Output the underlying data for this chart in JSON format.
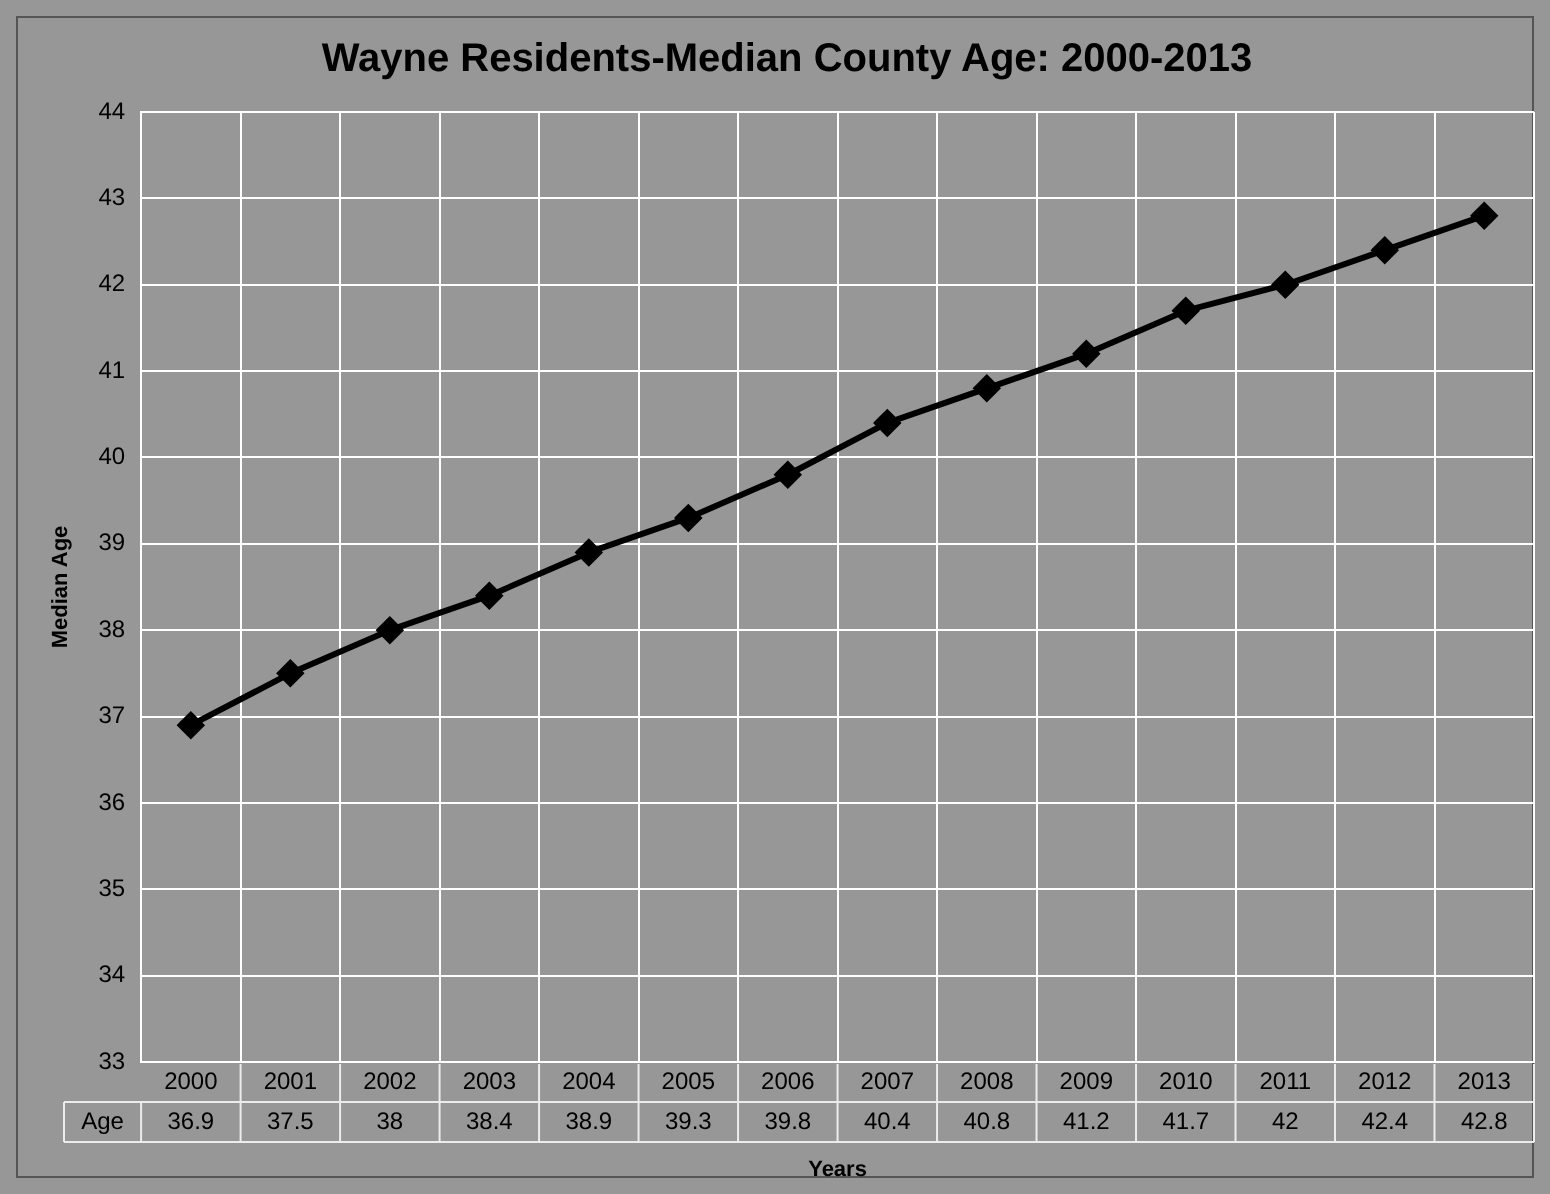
{
  "chart_data": {
    "type": "line",
    "title": "Wayne Residents-Median County Age: 2000-2013",
    "xlabel": "Years",
    "ylabel": "Median Age",
    "categories": [
      "2000",
      "2001",
      "2002",
      "2003",
      "2004",
      "2005",
      "2006",
      "2007",
      "2008",
      "2009",
      "2010",
      "2011",
      "2012",
      "2013"
    ],
    "series": [
      {
        "name": "Age",
        "color": "#000000",
        "values": [
          36.9,
          37.5,
          38,
          38.4,
          38.9,
          39.3,
          39.8,
          40.4,
          40.8,
          41.2,
          41.7,
          42,
          42.4,
          42.8
        ]
      }
    ],
    "ylim": [
      33,
      44
    ],
    "yticks": [
      33,
      34,
      35,
      36,
      37,
      38,
      39,
      40,
      41,
      42,
      43,
      44
    ],
    "grid": true,
    "legend": false,
    "marker": "diamond",
    "line_style": "solid",
    "data_labels": true
  }
}
